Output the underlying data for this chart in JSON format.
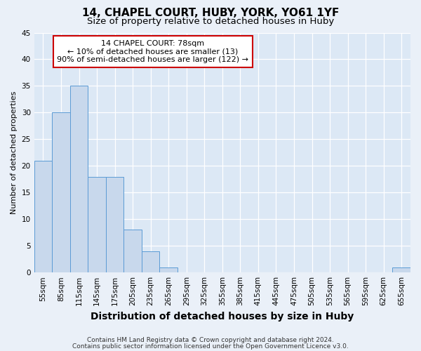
{
  "title": "14, CHAPEL COURT, HUBY, YORK, YO61 1YF",
  "subtitle": "Size of property relative to detached houses in Huby",
  "xlabel": "Distribution of detached houses by size in Huby",
  "ylabel": "Number of detached properties",
  "bin_labels": [
    "55sqm",
    "85sqm",
    "115sqm",
    "145sqm",
    "175sqm",
    "205sqm",
    "235sqm",
    "265sqm",
    "295sqm",
    "325sqm",
    "355sqm",
    "385sqm",
    "415sqm",
    "445sqm",
    "475sqm",
    "505sqm",
    "535sqm",
    "565sqm",
    "595sqm",
    "625sqm",
    "655sqm"
  ],
  "bar_values": [
    21,
    30,
    35,
    18,
    18,
    8,
    4,
    1,
    0,
    0,
    0,
    0,
    0,
    0,
    0,
    0,
    0,
    0,
    0,
    0,
    1
  ],
  "bar_color": "#c8d8ec",
  "bar_edgecolor": "#5b9bd5",
  "ylim": [
    0,
    45
  ],
  "yticks": [
    0,
    5,
    10,
    15,
    20,
    25,
    30,
    35,
    40,
    45
  ],
  "annotation_title": "14 CHAPEL COURT: 78sqm",
  "annotation_line1": "← 10% of detached houses are smaller (13)",
  "annotation_line2": "90% of semi-detached houses are larger (122) →",
  "annotation_box_facecolor": "#ffffff",
  "annotation_box_edgecolor": "#cc0000",
  "footer_line1": "Contains HM Land Registry data © Crown copyright and database right 2024.",
  "footer_line2": "Contains public sector information licensed under the Open Government Licence v3.0.",
  "fig_facecolor": "#eaf0f8",
  "plot_facecolor": "#dce8f5",
  "grid_color": "#ffffff",
  "title_fontsize": 11,
  "subtitle_fontsize": 9.5,
  "xlabel_fontsize": 10,
  "ylabel_fontsize": 8,
  "tick_fontsize": 7.5,
  "annotation_fontsize": 8,
  "footer_fontsize": 6.5
}
